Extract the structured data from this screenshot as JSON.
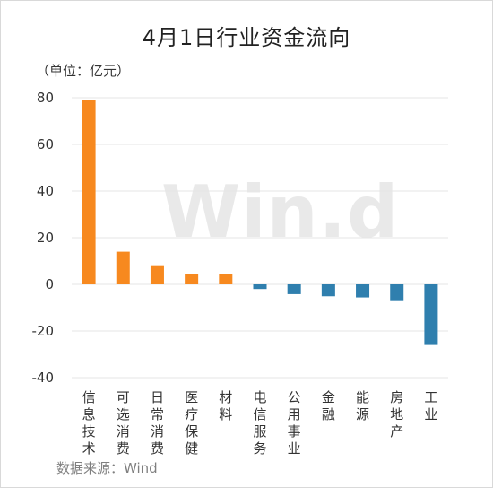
{
  "chart_data": {
    "type": "bar",
    "title": "4月1日行业资金流向",
    "unit_label": "（单位：亿元）",
    "source": "数据来源：Wind",
    "watermark": "Win.d",
    "categories": [
      "信息技术",
      "可选消费",
      "日常消费",
      "医疗保健",
      "材料",
      "电信服务",
      "公用事业",
      "金融",
      "能源",
      "房地产",
      "工业"
    ],
    "values": [
      79,
      14,
      8.2,
      4.6,
      4.3,
      -2,
      -4.2,
      -5.1,
      -5.6,
      -6.8,
      -26
    ],
    "ylim": [
      -40,
      80
    ],
    "yticks": [
      80,
      60,
      40,
      20,
      0,
      -20,
      -40
    ],
    "grid": true,
    "colors": {
      "positive": "#f7891f",
      "negative": "#2f7fae",
      "grid": "#e5e5e5"
    }
  }
}
